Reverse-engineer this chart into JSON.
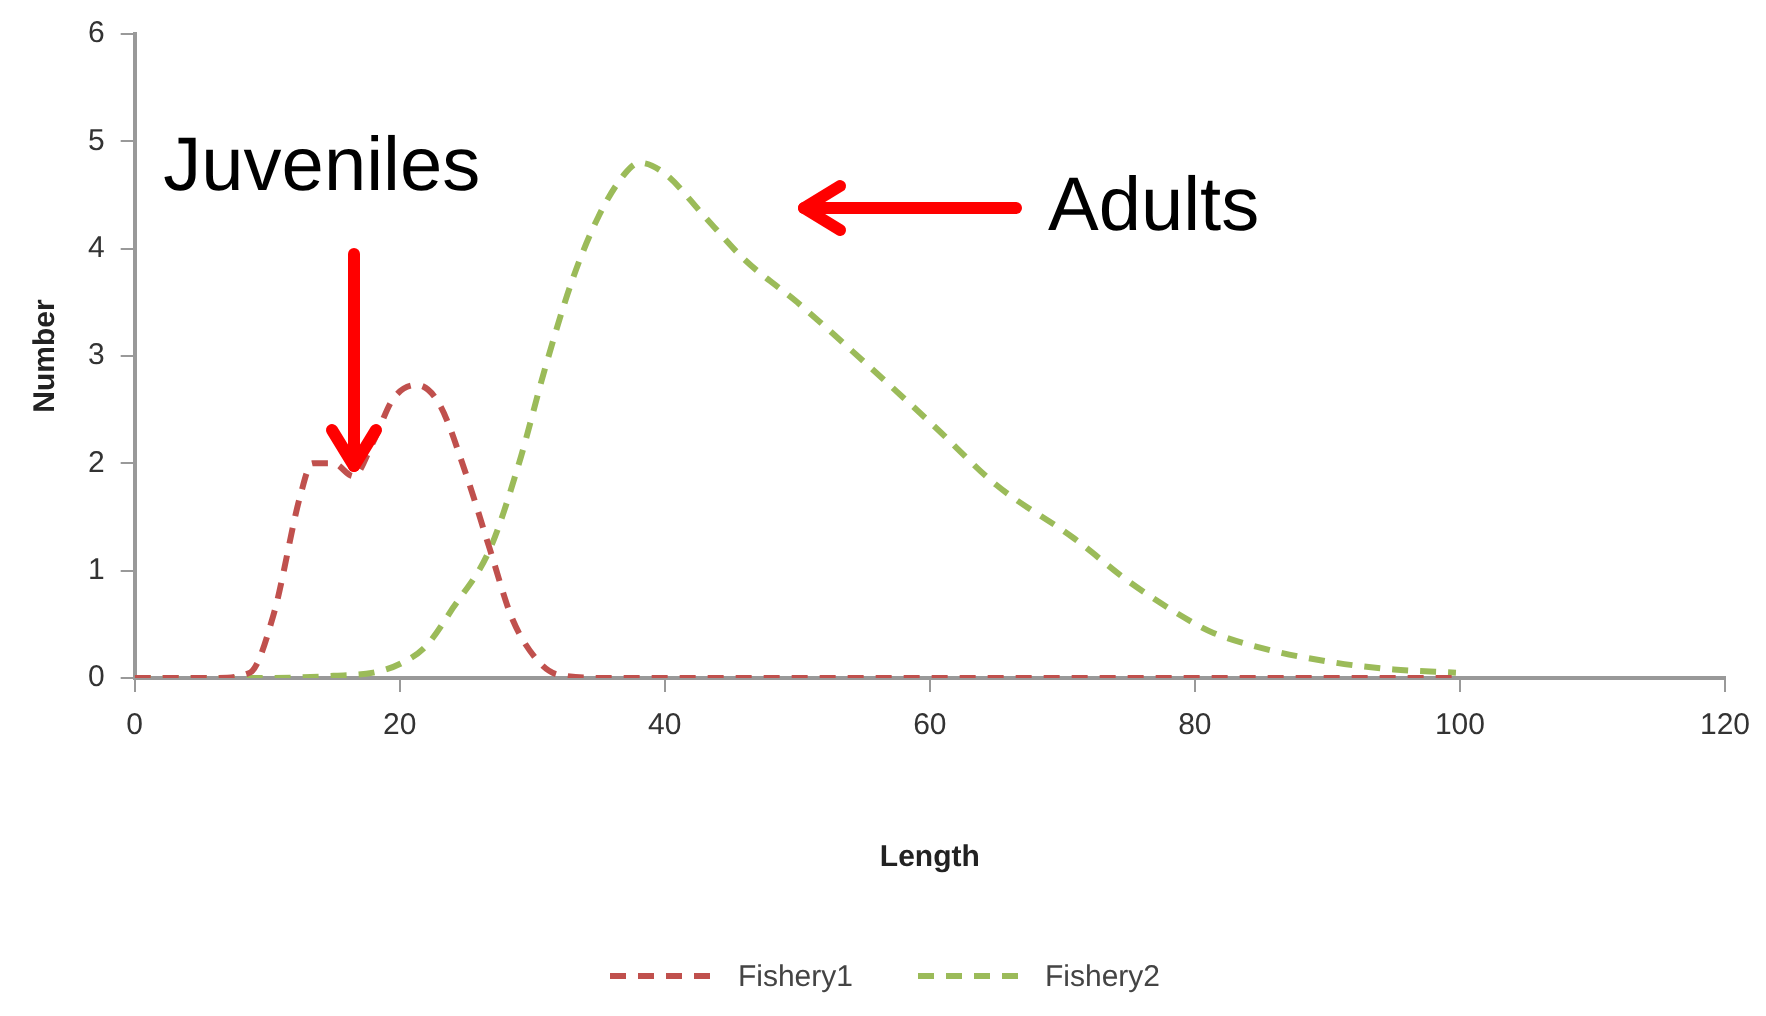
{
  "chart_data": {
    "type": "line",
    "xlabel": "Length",
    "ylabel": "Number",
    "xlim": [
      0,
      120
    ],
    "xticks": [
      0,
      20,
      40,
      60,
      80,
      100,
      120
    ],
    "ylim": [
      0,
      6
    ],
    "yticks": [
      0,
      1,
      2,
      3,
      4,
      5,
      6
    ],
    "grid": false,
    "legend": "bottom",
    "line_style": "dashed",
    "marker": "none",
    "series": [
      {
        "name": "Fishery1",
        "color": "#c0504d",
        "x": [
          0,
          6,
          8.7,
          10.5,
          12.5,
          13.4,
          15,
          16.5,
          18,
          19.5,
          21.3,
          23,
          25,
          26.8,
          28.5,
          30.5,
          32,
          36,
          40,
          60,
          80,
          100
        ],
        "values": [
          0,
          0,
          0.05,
          0.6,
          1.7,
          2.0,
          2.0,
          1.88,
          2.2,
          2.6,
          2.73,
          2.55,
          1.9,
          1.2,
          0.55,
          0.15,
          0.03,
          0,
          0,
          0,
          0,
          0
        ]
      },
      {
        "name": "Fishery2",
        "color": "#9bbb59",
        "x": [
          0,
          10,
          15,
          18,
          20,
          22,
          24,
          26.8,
          29,
          31,
          33,
          35,
          37,
          38.1,
          40,
          43,
          46,
          50,
          55,
          60.3,
          65,
          70.9,
          75,
          79.8,
          81.4,
          85,
          90.2,
          95,
          99.7
        ],
        "values": [
          0,
          0,
          0.02,
          0.05,
          0.13,
          0.3,
          0.65,
          1.2,
          2.0,
          2.9,
          3.7,
          4.3,
          4.7,
          4.8,
          4.7,
          4.3,
          3.9,
          3.5,
          2.95,
          2.35,
          1.8,
          1.3,
          0.9,
          0.52,
          0.42,
          0.28,
          0.15,
          0.08,
          0.05
        ]
      }
    ],
    "annotations": [
      {
        "text": "Juveniles",
        "x": 16.5,
        "y": 1.9
      },
      "Adults"
    ]
  }
}
